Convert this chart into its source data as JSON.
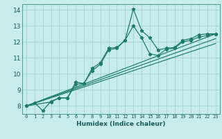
{
  "xlabel": "Humidex (Indice chaleur)",
  "ylabel": "",
  "xlim": [
    -0.5,
    23.5
  ],
  "ylim": [
    7.5,
    14.35
  ],
  "xticks": [
    0,
    1,
    2,
    3,
    4,
    5,
    6,
    7,
    8,
    9,
    10,
    11,
    12,
    13,
    14,
    15,
    16,
    17,
    18,
    19,
    20,
    21,
    22,
    23
  ],
  "yticks": [
    8,
    9,
    10,
    11,
    12,
    13,
    14
  ],
  "bg_color": "#c8ecec",
  "line_color": "#1e7b6e",
  "grid_color": "#a0d4d4",
  "lines": [
    {
      "x": [
        0,
        1,
        2,
        3,
        4,
        5,
        6,
        7,
        8,
        9,
        10,
        11,
        12,
        13,
        14,
        15,
        16,
        17,
        18,
        19,
        20,
        21,
        22,
        23
      ],
      "y": [
        8.0,
        8.2,
        7.7,
        8.3,
        8.5,
        8.5,
        9.5,
        9.4,
        10.35,
        10.7,
        11.6,
        11.65,
        12.1,
        14.05,
        12.7,
        12.25,
        11.5,
        11.6,
        11.65,
        12.1,
        12.2,
        12.45,
        12.5,
        12.5
      ],
      "marker": true
    },
    {
      "x": [
        0,
        3,
        4,
        5,
        6,
        7,
        8,
        9,
        10,
        11,
        12,
        13,
        14,
        15,
        16,
        17,
        18,
        19,
        20,
        21,
        22,
        23
      ],
      "y": [
        8.0,
        8.25,
        8.5,
        8.5,
        9.35,
        9.4,
        10.2,
        10.6,
        11.5,
        11.6,
        12.1,
        13.0,
        12.25,
        11.25,
        11.15,
        11.55,
        11.6,
        12.0,
        12.1,
        12.3,
        12.4,
        12.5
      ],
      "marker": true
    },
    {
      "x": [
        0,
        23
      ],
      "y": [
        8.0,
        12.5
      ],
      "marker": false
    },
    {
      "x": [
        0,
        23
      ],
      "y": [
        8.0,
        12.2
      ],
      "marker": false
    },
    {
      "x": [
        0,
        23
      ],
      "y": [
        8.0,
        11.9
      ],
      "marker": false
    }
  ]
}
